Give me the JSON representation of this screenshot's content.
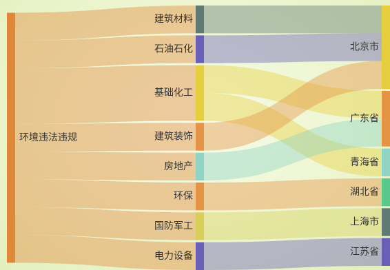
{
  "chart_data": {
    "type": "sankey",
    "title": "",
    "columns": [
      [
        {
          "name": "环境违法违规",
          "color": "#e0883a"
        }
      ],
      [
        {
          "name": "建筑材料",
          "color": "#5f7a74"
        },
        {
          "name": "石油石化",
          "color": "#6a5fb6"
        },
        {
          "name": "基础化工",
          "color": "#e6cf3e"
        },
        {
          "name": "建筑装饰",
          "color": "#e59344"
        },
        {
          "name": "房地产",
          "color": "#8fd4c4"
        },
        {
          "name": "环保",
          "color": "#e59344"
        },
        {
          "name": "国防军工",
          "color": "#d7cf5a"
        },
        {
          "name": "电力设备",
          "color": "#6a5fb6"
        }
      ],
      [
        {
          "name": "北京市",
          "color": "#e6cf3e"
        },
        {
          "name": "广东省",
          "color": "#e59344"
        },
        {
          "name": "青海省",
          "color": "#8fd4c4"
        },
        {
          "name": "湖北省",
          "color": "#58c98a"
        },
        {
          "name": "上海市",
          "color": "#5f7a74"
        },
        {
          "name": "江苏省",
          "color": "#6a5fb6"
        }
      ]
    ],
    "links": [
      {
        "source": "环境违法违规",
        "target": "建筑材料",
        "value": 1
      },
      {
        "source": "环境违法违规",
        "target": "石油石化",
        "value": 1
      },
      {
        "source": "环境违法违规",
        "target": "基础化工",
        "value": 2
      },
      {
        "source": "环境违法违规",
        "target": "建筑装饰",
        "value": 1
      },
      {
        "source": "环境违法违规",
        "target": "房地产",
        "value": 1
      },
      {
        "source": "环境违法违规",
        "target": "环保",
        "value": 1
      },
      {
        "source": "环境违法违规",
        "target": "国防军工",
        "value": 1
      },
      {
        "source": "环境违法违规",
        "target": "电力设备",
        "value": 1
      },
      {
        "source": "建筑材料",
        "target": "北京市",
        "value": 1
      },
      {
        "source": "石油石化",
        "target": "北京市",
        "value": 1
      },
      {
        "source": "基础化工",
        "target": "广东省",
        "value": 1
      },
      {
        "source": "基础化工",
        "target": "青海省",
        "value": 1
      },
      {
        "source": "建筑装饰",
        "target": "北京市",
        "value": 1
      },
      {
        "source": "房地产",
        "target": "广东省",
        "value": 1
      },
      {
        "source": "环保",
        "target": "湖北省",
        "value": 1
      },
      {
        "source": "国防军工",
        "target": "上海市",
        "value": 1
      },
      {
        "source": "电力设备",
        "target": "江苏省",
        "value": 1
      }
    ]
  }
}
